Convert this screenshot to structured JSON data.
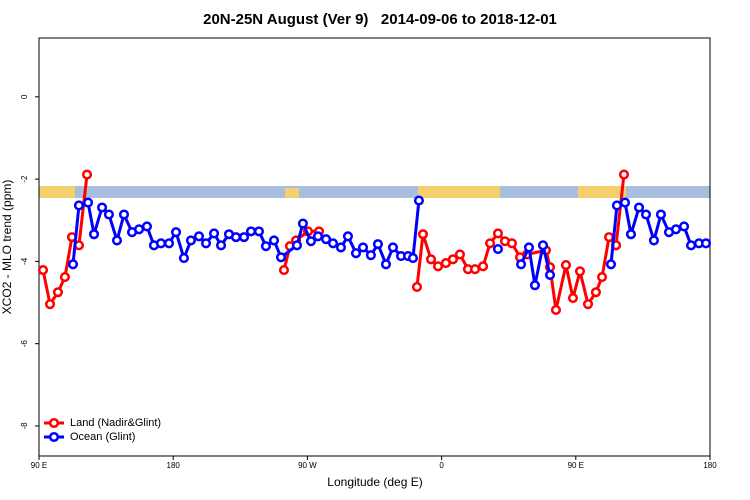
{
  "chart_data": {
    "type": "line",
    "title": "20N-25N August (Ver 9)   2014-09-06 to 2018-12-01",
    "x_label": "Longitude (deg E)",
    "y_label": "XCO2 - MLO trend (ppm)",
    "xlim": [
      90,
      540
    ],
    "xticks": [
      {
        "value": 90,
        "label": "90 E"
      },
      180,
      {
        "value": 270,
        "label": "90 W"
      },
      {
        "value": 360,
        "label": "0"
      },
      {
        "value": 450,
        "label": "90 E"
      },
      {
        "value": 540,
        "label": "180"
      }
    ],
    "ylim": [
      -8.73,
      1.43
    ],
    "yticks": [
      0,
      -2,
      -4,
      -6,
      -8
    ],
    "legend": "bottom-left",
    "series": [
      {
        "name": "Land (Nadir&Glint)",
        "color": "#ff0000",
        "x": [
          92.7,
          97.4,
          102.7,
          107.4,
          112.1,
          116.8,
          122.2,
          null,
          254.3,
          258.3,
          262.4,
          270.4,
          277.8,
          null,
          343.5,
          347.5,
          352.9,
          357.6,
          362.9,
          367.6,
          372.3,
          377.7,
          382.4,
          387.8,
          392.5,
          397.8,
          402.5,
          407.2,
          412.6,
          417.3,
          430.0,
          432.7,
          436.7,
          443.4,
          448.1,
          452.8,
          458.2,
          463.5,
          467.6,
          472.3,
          477.0,
          482.3
        ],
        "values": [
          -4.21,
          -5.04,
          -4.75,
          -4.38,
          -3.41,
          -3.61,
          -1.89,
          null,
          -4.21,
          -3.63,
          -3.49,
          -3.27,
          -3.27,
          null,
          -4.62,
          -3.34,
          -3.95,
          -4.12,
          -4.04,
          -3.95,
          -3.83,
          -4.19,
          -4.19,
          -4.12,
          -3.56,
          -3.32,
          -3.51,
          -3.56,
          -3.9,
          -3.83,
          -3.73,
          -4.14,
          -5.18,
          -4.09,
          -4.89,
          -4.24,
          -5.04,
          -4.75,
          -4.38,
          -3.41,
          -3.61,
          -1.89
        ]
      },
      {
        "name": "Ocean (Glint)",
        "color": "#0000ff",
        "x": [
          112.8,
          116.8,
          122.9,
          126.9,
          132.3,
          136.9,
          142.3,
          147.0,
          152.4,
          157.1,
          162.4,
          167.1,
          171.8,
          177.2,
          181.9,
          187.2,
          191.9,
          197.3,
          202.0,
          207.4,
          212.1,
          217.4,
          222.1,
          227.5,
          232.2,
          237.5,
          242.2,
          247.6,
          252.3,
          263.0,
          267.0,
          272.4,
          277.1,
          282.5,
          287.2,
          292.5,
          297.2,
          302.6,
          307.3,
          312.6,
          317.3,
          322.7,
          327.4,
          332.8,
          337.5,
          340.8,
          344.8,
          null,
          397.8,
          null,
          413.3,
          418.6,
          422.6,
          428.0,
          432.7,
          null,
          473.6,
          477.6,
          483.0,
          487.0,
          492.4,
          497.1,
          502.4,
          507.1,
          512.5,
          517.2,
          522.6,
          527.3,
          532.6,
          537.3
        ],
        "values": [
          -4.07,
          -2.64,
          -2.57,
          -3.34,
          -2.69,
          -2.86,
          -3.49,
          -2.86,
          -3.29,
          -3.22,
          -3.15,
          -3.61,
          -3.56,
          -3.56,
          -3.29,
          -3.92,
          -3.49,
          -3.39,
          -3.56,
          -3.32,
          -3.61,
          -3.34,
          -3.41,
          -3.41,
          -3.27,
          -3.27,
          -3.63,
          -3.49,
          -3.9,
          -3.61,
          -3.08,
          -3.51,
          -3.39,
          -3.46,
          -3.56,
          -3.66,
          -3.39,
          -3.8,
          -3.66,
          -3.85,
          -3.58,
          -4.07,
          -3.66,
          -3.87,
          -3.87,
          -3.92,
          -2.52,
          null,
          -3.7,
          null,
          -4.07,
          -3.66,
          -4.58,
          -3.61,
          -4.33,
          null,
          -4.07,
          -2.64,
          -2.57,
          -3.34,
          -2.69,
          -2.86,
          -3.49,
          -2.86,
          -3.29,
          -3.22,
          -3.15,
          -3.61,
          -3.56,
          -3.56
        ]
      }
    ]
  }
}
